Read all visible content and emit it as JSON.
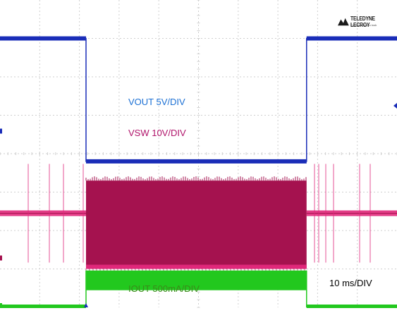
{
  "brand": {
    "name": "TELEDYNE LECROY",
    "tagline": "Everywhere you look"
  },
  "colors": {
    "grid": "#cfcfcf",
    "vout": "#1a2db8",
    "vsw": "#a5124f",
    "vsw_idle": "#e0287a",
    "iout": "#22c81e",
    "label_vout": "#1a6fd4",
    "label_vsw": "#b0126a",
    "label_iout": "#3a8a1a",
    "label_time": "#000000"
  },
  "chart_data": {
    "type": "line",
    "title": "",
    "xlabel": "",
    "ylabel": "",
    "grid": true,
    "x_divisions": 10,
    "y_divisions": 8,
    "timebase_label": "10 ms/DIV",
    "pulse_start_div": 3.9,
    "pulse_end_div": 13.9,
    "series": [
      {
        "name": "VOUT 5V/DIV",
        "channel": "VOUT",
        "scale": "5V/DIV",
        "x_div": [
          0,
          3.9,
          3.9,
          13.9,
          13.9,
          18.0
        ],
        "y_div": [
          7.0,
          7.0,
          3.8,
          3.8,
          7.0,
          7.0
        ]
      },
      {
        "name": "VSW 10V/DIV",
        "channel": "VSW",
        "scale": "10V/DIV",
        "idle_level_div": 2.45,
        "burst_x_div": [
          3.9,
          13.9
        ],
        "burst_y_div": [
          1.0,
          3.3
        ]
      },
      {
        "name": "IOUT 500mA/DIV",
        "channel": "IOUT",
        "scale": "500mA/DIV",
        "x_div": [
          0,
          3.9,
          3.9,
          13.9,
          13.9,
          18.0
        ],
        "y_div": [
          0.0,
          0.0,
          0.85,
          0.85,
          0.0,
          0.0
        ]
      }
    ]
  }
}
